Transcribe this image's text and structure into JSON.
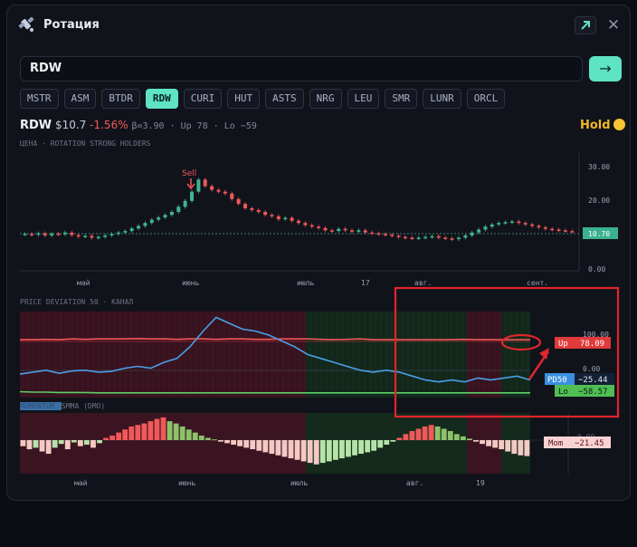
{
  "window": {
    "title": "Ротация",
    "icon": "satellite-icon"
  },
  "search": {
    "value": "RDW",
    "go_label": "→"
  },
  "chips": [
    "MSTR",
    "ASM",
    "BTDR",
    "RDW",
    "CURI",
    "HUT",
    "ASTS",
    "NRG",
    "LEU",
    "SMR",
    "LUNR",
    "ORCL"
  ],
  "active_chip": "RDW",
  "ticker": {
    "symbol": "RDW",
    "price": "$10.7",
    "change": "-1.56%",
    "meta": "β=3.90 · Up 78 · Lo −59",
    "signal": "Hold"
  },
  "price_chart": {
    "caption": "ЦЕНА · ROTATION STRONG HOLDERS",
    "y_ticks": [
      "30.00",
      "20.00",
      "10.00",
      "0.00"
    ],
    "x_ticks": [
      "май",
      "июнь",
      "июль",
      "17",
      "авг.",
      "сент."
    ],
    "last_price": "10.70",
    "annotation": "Sell"
  },
  "dev_chart": {
    "caption": "PRICE DEVIATION 50 · КАНАЛ",
    "y_ticks": [
      "100.00",
      "0.00"
    ],
    "labels": {
      "up": "Up",
      "up_value": "78.09",
      "pd": "PD50",
      "pd_value": "−25.44",
      "lo": "Lo",
      "lo_value": "−58.57"
    }
  },
  "mom_chart": {
    "caption_hidden": "MOMENTUM",
    "caption": "SMMA (DMO)",
    "y_tick": "0.00",
    "label": "Mom",
    "value": "−21.45",
    "x_ticks": [
      "май",
      "июнь",
      "июль",
      "авг.",
      "19"
    ]
  },
  "colors": {
    "accent": "#5ee3c3",
    "up": "#f0585a",
    "pd": "#4a9fe8",
    "lo": "#5dd067",
    "annotation_box": "#e0262b"
  },
  "chart_data": [
    {
      "type": "candlestick",
      "title": "",
      "ylim": [
        0,
        32
      ],
      "x_ticks": [
        "май",
        "июнь",
        "июль",
        "17",
        "авг.",
        "сент."
      ],
      "values": [
        10.0,
        9.8,
        10.2,
        9.6,
        10.1,
        9.9,
        10.4,
        9.7,
        9.3,
        9.5,
        9.0,
        9.2,
        9.6,
        10.0,
        10.4,
        10.8,
        11.5,
        12.2,
        13.0,
        13.9,
        14.5,
        15.2,
        16.0,
        17.4,
        19.0,
        21.5,
        24.8,
        23.0,
        22.0,
        21.5,
        21.0,
        19.5,
        18.2,
        17.0,
        16.5,
        16.0,
        15.2,
        14.8,
        14.0,
        14.4,
        13.6,
        13.0,
        12.4,
        12.0,
        11.6,
        11.0,
        10.8,
        11.4,
        11.0,
        10.6,
        11.0,
        10.4,
        10.2,
        10.0,
        9.8,
        9.5,
        9.2,
        9.0,
        8.8,
        9.0,
        9.2,
        9.4,
        9.0,
        8.8,
        8.6,
        9.0,
        9.6,
        10.4,
        11.2,
        12.0,
        12.6,
        13.0,
        13.2,
        13.4,
        13.0,
        12.6,
        12.2,
        11.8,
        11.4,
        11.2,
        11.0,
        10.8,
        10.7
      ]
    },
    {
      "type": "line",
      "title": "",
      "series": [
        {
          "name": "Up",
          "values": [
            78,
            78,
            79,
            78,
            80,
            79,
            80,
            80,
            80,
            81,
            80,
            80,
            79,
            80,
            80,
            79,
            80,
            80,
            79,
            79,
            80,
            80,
            80,
            79,
            78,
            79,
            80,
            78,
            78,
            78,
            78,
            78,
            78,
            78,
            79,
            78,
            78,
            78,
            78,
            78
          ]
        },
        {
          "name": "PD50",
          "values": [
            -10,
            -5,
            0,
            -8,
            -2,
            0,
            -5,
            -3,
            5,
            10,
            5,
            20,
            30,
            60,
            100,
            135,
            120,
            105,
            100,
            90,
            75,
            60,
            40,
            30,
            20,
            10,
            0,
            -5,
            0,
            -5,
            -15,
            -25,
            -30,
            -25,
            -30,
            -20,
            -25,
            -20,
            -15,
            -25
          ]
        },
        {
          "name": "Lo",
          "values": [
            -55,
            -56,
            -56,
            -57,
            -57,
            -57,
            -58,
            -58,
            -58,
            -58,
            -58,
            -58,
            -58,
            -58,
            -58,
            -58,
            -58,
            -58,
            -58,
            -58,
            -58,
            -58,
            -58,
            -58,
            -58,
            -58,
            -58,
            -58,
            -58,
            -58,
            -58,
            -58,
            -58,
            -58,
            -58,
            -58,
            -58,
            -58,
            -58,
            -58
          ]
        }
      ],
      "ylim": [
        -70,
        150
      ]
    },
    {
      "type": "bar",
      "title": "",
      "values": [
        -8,
        -12,
        -10,
        -15,
        -18,
        -10,
        -5,
        -12,
        -3,
        -8,
        -6,
        -10,
        -4,
        3,
        6,
        10,
        14,
        18,
        20,
        22,
        25,
        28,
        30,
        25,
        22,
        18,
        14,
        10,
        6,
        3,
        1,
        -2,
        -4,
        -6,
        -8,
        -10,
        -12,
        -14,
        -16,
        -18,
        -20,
        -22,
        -24,
        -26,
        -28,
        -30,
        -32,
        -30,
        -28,
        -26,
        -24,
        -22,
        -20,
        -18,
        -16,
        -14,
        -10,
        -6,
        -2,
        3,
        8,
        12,
        15,
        18,
        20,
        18,
        15,
        12,
        8,
        5,
        2,
        -2,
        -5,
        -8,
        -10,
        -12,
        -15,
        -18,
        -20,
        -21
      ],
      "ylim": [
        -40,
        40
      ]
    }
  ]
}
